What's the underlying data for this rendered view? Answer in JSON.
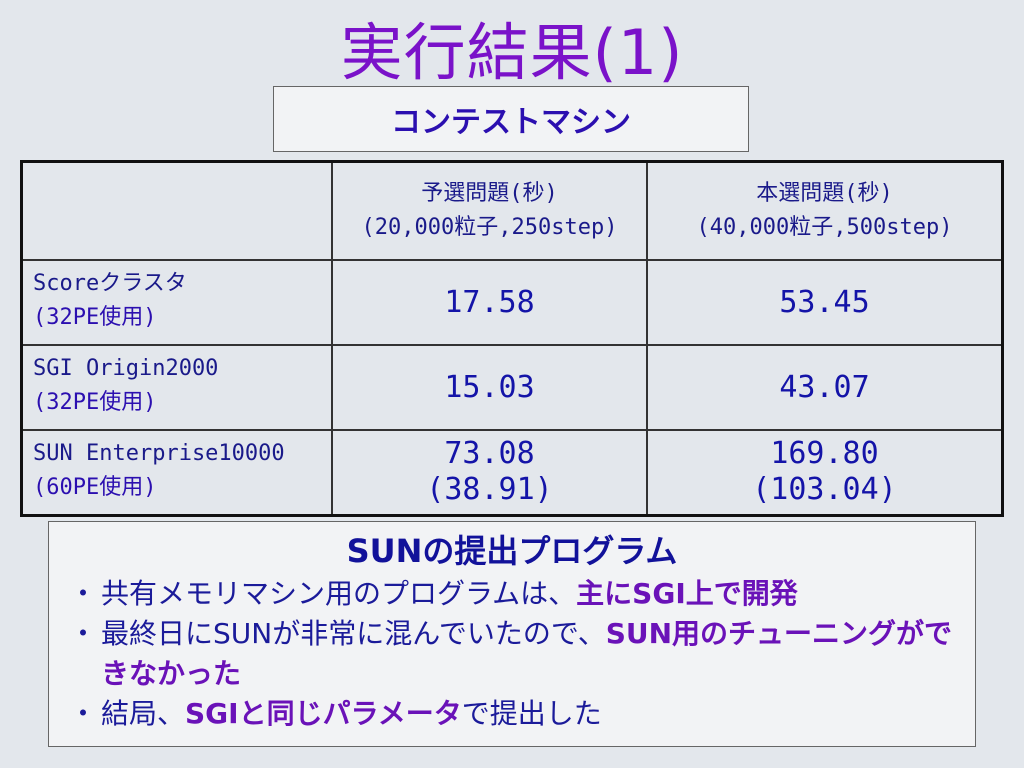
{
  "title": "実行結果(1)",
  "subtitle": "コンテストマシン",
  "table": {
    "headers": [
      {
        "line1": "予選問題(秒)",
        "line2": "(20,000粒子,250step)"
      },
      {
        "line1": "本選問題(秒)",
        "line2": "(40,000粒子,500step)"
      }
    ],
    "rows": [
      {
        "name": "Scoreクラスタ",
        "pe": "(32PE使用)",
        "prelim": "17.58",
        "prelim_sub": "",
        "final": "53.45",
        "final_sub": ""
      },
      {
        "name": "SGI Origin2000",
        "pe": "(32PE使用)",
        "prelim": "15.03",
        "prelim_sub": "",
        "final": "43.07",
        "final_sub": ""
      },
      {
        "name": "SUN Enterprise10000",
        "pe": "(60PE使用)",
        "prelim": "73.08",
        "prelim_sub": "(38.91)",
        "final": "169.80",
        "final_sub": "(103.04)"
      }
    ]
  },
  "notes": {
    "title": "SUNの提出プログラム",
    "bullet_char": "・",
    "items": [
      {
        "text": "共有メモリマシン用のプログラムは、",
        "highlight": "主にSGI上で開発",
        "after": ""
      },
      {
        "text": "最終日にSUNが非常に混んでいたので、",
        "highlight": "SUN用のチューニングができなかった",
        "after": ""
      },
      {
        "text": "結局、",
        "highlight": "SGIと同じパラメータ",
        "after": "で提出した"
      }
    ]
  }
}
